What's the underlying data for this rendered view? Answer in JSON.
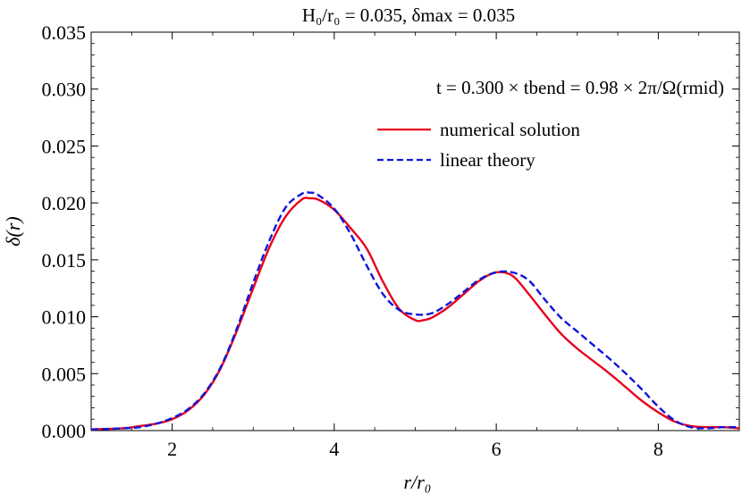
{
  "chart_data": {
    "type": "line",
    "title": "H₀/r₀ = 0.035,   δmax = 0.035",
    "xlabel": "r/r₀",
    "ylabel": "δ(r)",
    "xlim": [
      1,
      9
    ],
    "ylim": [
      0,
      0.035
    ],
    "xticks": [
      2,
      4,
      6,
      8
    ],
    "yticks": [
      "0.000",
      "0.005",
      "0.010",
      "0.015",
      "0.020",
      "0.025",
      "0.030",
      "0.035"
    ],
    "annotation": "t = 0.300 × tbend = 0.98 × 2π/Ω(rmid)",
    "legend_position": "top-right",
    "grid": false,
    "series": [
      {
        "name": "numerical solution",
        "color": "#e8001c",
        "style": "solid",
        "x": [
          1.0,
          1.4,
          1.6,
          1.8,
          2.0,
          2.2,
          2.4,
          2.6,
          2.8,
          3.0,
          3.2,
          3.4,
          3.6,
          3.7,
          3.8,
          4.0,
          4.2,
          4.4,
          4.6,
          4.8,
          5.0,
          5.1,
          5.2,
          5.4,
          5.6,
          5.8,
          6.0,
          6.2,
          6.4,
          6.6,
          6.8,
          7.0,
          7.2,
          7.4,
          7.6,
          7.8,
          8.0,
          8.2,
          8.4,
          8.6,
          8.8,
          9.0
        ],
        "y": [
          0.0001,
          0.0002,
          0.0004,
          0.0006,
          0.001,
          0.0018,
          0.0032,
          0.0055,
          0.0088,
          0.0125,
          0.0161,
          0.0188,
          0.0203,
          0.0204,
          0.0203,
          0.0194,
          0.0178,
          0.016,
          0.0131,
          0.0107,
          0.0097,
          0.0097,
          0.0099,
          0.0108,
          0.012,
          0.0132,
          0.0139,
          0.0136,
          0.012,
          0.0102,
          0.0085,
          0.0072,
          0.0061,
          0.005,
          0.0038,
          0.0026,
          0.0016,
          0.0008,
          0.0004,
          0.0003,
          0.0003,
          0.0002
        ]
      },
      {
        "name": "linear theory",
        "color": "#1016d8",
        "style": "dashed",
        "x": [
          1.0,
          1.4,
          1.6,
          1.8,
          2.0,
          2.2,
          2.4,
          2.6,
          2.8,
          3.0,
          3.2,
          3.4,
          3.6,
          3.7,
          3.8,
          4.0,
          4.2,
          4.4,
          4.6,
          4.8,
          5.0,
          5.2,
          5.4,
          5.6,
          5.8,
          6.0,
          6.2,
          6.4,
          6.6,
          6.8,
          7.0,
          7.2,
          7.4,
          7.6,
          7.8,
          8.0,
          8.2,
          8.4,
          8.6,
          8.8,
          9.0
        ],
        "y": [
          0.0001,
          0.0002,
          0.0003,
          0.0006,
          0.0011,
          0.0019,
          0.0033,
          0.0056,
          0.009,
          0.013,
          0.0167,
          0.0196,
          0.0208,
          0.0209,
          0.0207,
          0.0195,
          0.0173,
          0.0145,
          0.012,
          0.0106,
          0.0102,
          0.0103,
          0.0111,
          0.0122,
          0.0133,
          0.0139,
          0.0139,
          0.0132,
          0.0115,
          0.0099,
          0.0087,
          0.0075,
          0.0063,
          0.005,
          0.0036,
          0.0021,
          0.0009,
          0.0003,
          0.0002,
          0.0003,
          0.0003
        ]
      }
    ]
  }
}
